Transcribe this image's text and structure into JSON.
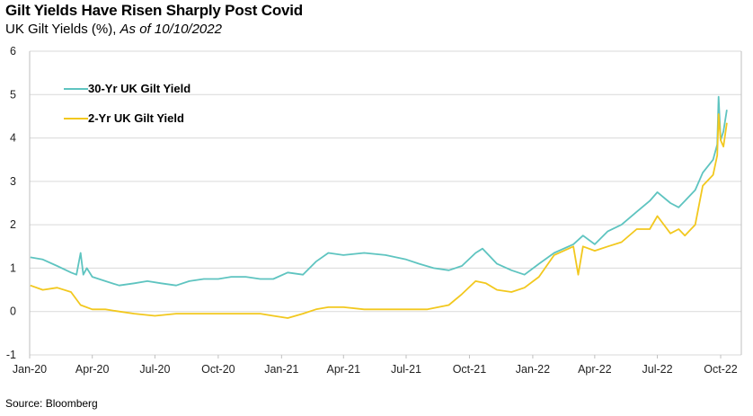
{
  "header": {
    "title": "Gilt Yields Have Risen Sharply Post Covid",
    "subtitle": "UK Gilt Yields (%), ",
    "subtitle_asof": "As of 10/10/2022"
  },
  "footer": {
    "source": "Source: Bloomberg"
  },
  "colors": {
    "yield30": "#5ec4c0",
    "yield2": "#f2c81e",
    "grid": "#d9d9d9",
    "axis": "#bfbfbf"
  },
  "chart_data": {
    "type": "line",
    "title": "Gilt Yields Have Risen Sharply Post Covid",
    "xlabel": "",
    "ylabel": "",
    "ylim": [
      -1,
      6
    ],
    "yticks": [
      -1,
      0,
      1,
      2,
      3,
      4,
      5,
      6
    ],
    "xlim": [
      "2020-01-01",
      "2022-10-31"
    ],
    "xtick_labels": [
      "Jan-20",
      "Apr-20",
      "Jul-20",
      "Oct-20",
      "Jan-21",
      "Apr-21",
      "Jul-21",
      "Oct-21",
      "Jan-22",
      "Apr-22",
      "Jul-22",
      "Oct-22"
    ],
    "xtick_dates": [
      "2020-01-01",
      "2020-04-01",
      "2020-07-01",
      "2020-10-01",
      "2021-01-01",
      "2021-04-01",
      "2021-07-01",
      "2021-10-01",
      "2022-01-01",
      "2022-04-01",
      "2022-07-01",
      "2022-10-01"
    ],
    "grid": "horizontal",
    "legend_position": "top-left",
    "series": [
      {
        "name": "30-Yr UK Gilt Yield",
        "color": "#5ec4c0",
        "x": [
          "2020-01-02",
          "2020-01-20",
          "2020-02-10",
          "2020-03-01",
          "2020-03-09",
          "2020-03-15",
          "2020-03-19",
          "2020-03-24",
          "2020-04-01",
          "2020-04-20",
          "2020-05-10",
          "2020-06-01",
          "2020-06-20",
          "2020-07-10",
          "2020-08-01",
          "2020-08-20",
          "2020-09-10",
          "2020-10-01",
          "2020-10-20",
          "2020-11-10",
          "2020-12-01",
          "2020-12-20",
          "2021-01-10",
          "2021-02-01",
          "2021-02-20",
          "2021-03-10",
          "2021-04-01",
          "2021-05-01",
          "2021-06-01",
          "2021-07-01",
          "2021-07-20",
          "2021-08-10",
          "2021-09-01",
          "2021-09-20",
          "2021-10-10",
          "2021-10-20",
          "2021-11-10",
          "2021-12-01",
          "2021-12-20",
          "2022-01-10",
          "2022-02-01",
          "2022-03-01",
          "2022-03-15",
          "2022-04-01",
          "2022-04-20",
          "2022-05-10",
          "2022-06-01",
          "2022-06-20",
          "2022-07-01",
          "2022-07-20",
          "2022-08-01",
          "2022-08-10",
          "2022-08-25",
          "2022-09-05",
          "2022-09-20",
          "2022-09-26",
          "2022-09-28",
          "2022-10-01",
          "2022-10-05",
          "2022-10-10"
        ],
        "values": [
          1.25,
          1.2,
          1.05,
          0.9,
          0.85,
          1.35,
          0.85,
          1.0,
          0.8,
          0.7,
          0.6,
          0.65,
          0.7,
          0.65,
          0.6,
          0.7,
          0.75,
          0.75,
          0.8,
          0.8,
          0.75,
          0.75,
          0.9,
          0.85,
          1.15,
          1.35,
          1.3,
          1.35,
          1.3,
          1.2,
          1.1,
          1.0,
          0.95,
          1.05,
          1.35,
          1.45,
          1.1,
          0.95,
          0.85,
          1.1,
          1.35,
          1.55,
          1.75,
          1.55,
          1.85,
          2.0,
          2.3,
          2.55,
          2.75,
          2.5,
          2.4,
          2.55,
          2.8,
          3.2,
          3.5,
          3.85,
          4.95,
          3.95,
          4.15,
          4.65
        ]
      },
      {
        "name": "2-Yr UK Gilt Yield",
        "color": "#f2c81e",
        "x": [
          "2020-01-02",
          "2020-01-20",
          "2020-02-10",
          "2020-03-01",
          "2020-03-15",
          "2020-04-01",
          "2020-04-20",
          "2020-05-10",
          "2020-06-01",
          "2020-07-01",
          "2020-08-01",
          "2020-09-01",
          "2020-10-01",
          "2020-11-01",
          "2020-12-01",
          "2020-12-20",
          "2021-01-10",
          "2021-02-01",
          "2021-02-20",
          "2021-03-10",
          "2021-04-01",
          "2021-05-01",
          "2021-06-01",
          "2021-07-01",
          "2021-08-01",
          "2021-09-01",
          "2021-09-20",
          "2021-10-10",
          "2021-10-25",
          "2021-11-10",
          "2021-12-01",
          "2021-12-20",
          "2022-01-10",
          "2022-02-01",
          "2022-03-01",
          "2022-03-08",
          "2022-03-15",
          "2022-04-01",
          "2022-04-20",
          "2022-05-10",
          "2022-06-01",
          "2022-06-20",
          "2022-07-01",
          "2022-07-20",
          "2022-08-01",
          "2022-08-10",
          "2022-08-25",
          "2022-09-05",
          "2022-09-20",
          "2022-09-26",
          "2022-09-28",
          "2022-10-01",
          "2022-10-05",
          "2022-10-10"
        ],
        "values": [
          0.6,
          0.5,
          0.55,
          0.45,
          0.15,
          0.05,
          0.05,
          0.0,
          -0.05,
          -0.1,
          -0.05,
          -0.05,
          -0.05,
          -0.05,
          -0.05,
          -0.1,
          -0.15,
          -0.05,
          0.05,
          0.1,
          0.1,
          0.05,
          0.05,
          0.05,
          0.05,
          0.15,
          0.4,
          0.7,
          0.65,
          0.5,
          0.45,
          0.55,
          0.8,
          1.3,
          1.5,
          0.85,
          1.5,
          1.4,
          1.5,
          1.6,
          1.9,
          1.9,
          2.2,
          1.8,
          1.9,
          1.75,
          2.0,
          2.9,
          3.15,
          3.6,
          4.55,
          3.95,
          3.8,
          4.35
        ]
      }
    ]
  }
}
